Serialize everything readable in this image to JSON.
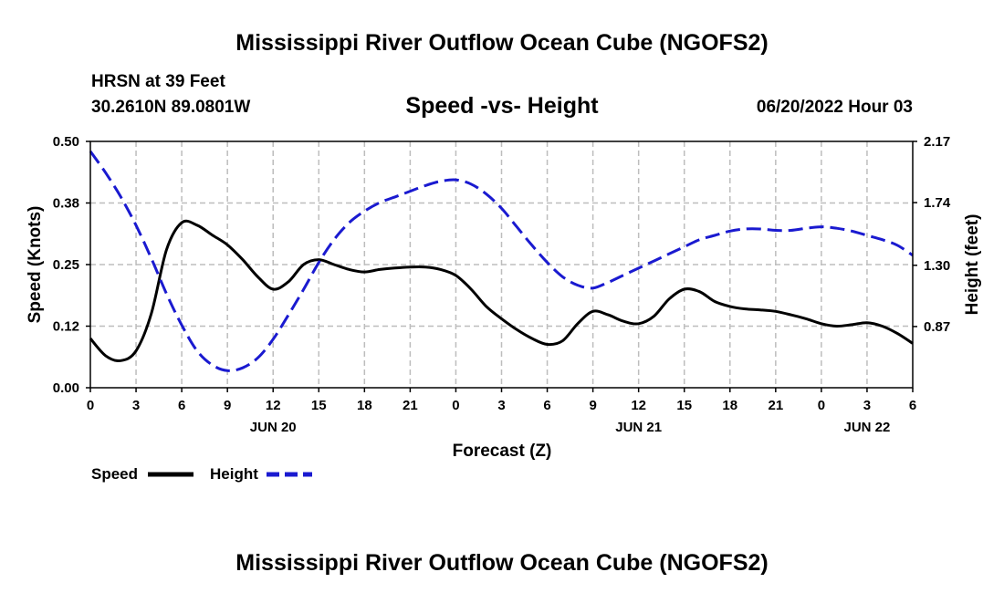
{
  "header": {
    "title": "Mississippi River Outflow Ocean Cube (NGOFS2)",
    "station": "HRSN at 39 Feet",
    "coords": "30.2610N  89.0801W",
    "date": "06/20/2022 Hour 03",
    "footer_title": "Mississippi River Outflow Ocean Cube (NGOFS2)"
  },
  "legend": {
    "speed_label": "Speed",
    "height_label": "Height"
  },
  "colors": {
    "speed": "#000000",
    "height": "#1a1ad0",
    "grid": "#bdbdbd"
  },
  "chart_data": {
    "type": "line",
    "title": "Speed -vs- Height",
    "xlabel": "Forecast (Z)",
    "ylabel": "Speed (Knots)",
    "y2label": "Height (feet)",
    "x_unit": "hours from 00Z Jun 20",
    "xlim": [
      0,
      54
    ],
    "ylim": [
      0,
      0.5
    ],
    "y2lim": [
      0.44,
      2.17
    ],
    "x_ticks": [
      0,
      3,
      6,
      9,
      12,
      15,
      18,
      21,
      24,
      27,
      30,
      33,
      36,
      39,
      42,
      45,
      48,
      51,
      54
    ],
    "x_tick_labels": [
      "0",
      "3",
      "6",
      "9",
      "12",
      "15",
      "18",
      "21",
      "0",
      "3",
      "6",
      "9",
      "12",
      "15",
      "18",
      "21",
      "0",
      "3",
      "6"
    ],
    "date_labels": [
      {
        "x": 12,
        "label": "JUN 20"
      },
      {
        "x": 36,
        "label": "JUN 21"
      },
      {
        "x": 51,
        "label": "JUN 22"
      }
    ],
    "y_ticks": [
      0.0,
      0.125,
      0.25,
      0.375,
      0.5
    ],
    "y_tick_labels": [
      "0.00",
      "0.12",
      "0.25",
      "0.38",
      "0.50"
    ],
    "y2_ticks": [
      0.87,
      1.3,
      1.74,
      2.17
    ],
    "y2_tick_labels": [
      "0.87",
      "1.30",
      "1.74",
      "2.17"
    ],
    "grid": true,
    "series": [
      {
        "name": "Speed",
        "axis": "left",
        "style": "solid",
        "x": [
          0,
          1,
          2,
          3,
          4,
          5,
          6,
          7,
          8,
          9,
          10,
          11,
          12,
          13,
          14,
          15,
          16,
          17,
          18,
          19,
          20,
          21,
          22,
          23,
          24,
          25,
          26,
          27,
          28,
          29,
          30,
          31,
          32,
          33,
          34,
          35,
          36,
          37,
          38,
          39,
          40,
          41,
          42,
          43,
          44,
          45,
          46,
          47,
          48,
          49,
          50,
          51,
          52,
          53,
          54
        ],
        "values": [
          0.1,
          0.065,
          0.055,
          0.075,
          0.15,
          0.28,
          0.335,
          0.33,
          0.31,
          0.29,
          0.26,
          0.225,
          0.2,
          0.215,
          0.25,
          0.26,
          0.25,
          0.24,
          0.235,
          0.24,
          0.243,
          0.245,
          0.245,
          0.24,
          0.228,
          0.2,
          0.165,
          0.14,
          0.118,
          0.1,
          0.088,
          0.095,
          0.13,
          0.155,
          0.148,
          0.135,
          0.13,
          0.145,
          0.18,
          0.2,
          0.195,
          0.175,
          0.165,
          0.16,
          0.158,
          0.155,
          0.148,
          0.14,
          0.13,
          0.125,
          0.128,
          0.132,
          0.125,
          0.11,
          0.09
        ]
      },
      {
        "name": "Height",
        "axis": "right",
        "style": "dashed",
        "x": [
          0,
          1,
          2,
          3,
          4,
          5,
          6,
          7,
          8,
          9,
          10,
          11,
          12,
          13,
          14,
          15,
          16,
          17,
          18,
          19,
          20,
          21,
          22,
          23,
          24,
          25,
          26,
          27,
          28,
          29,
          30,
          31,
          32,
          33,
          34,
          35,
          36,
          37,
          38,
          39,
          40,
          41,
          42,
          43,
          44,
          45,
          46,
          47,
          48,
          49,
          50,
          51,
          52,
          53,
          54
        ],
        "values": [
          2.1,
          1.95,
          1.78,
          1.58,
          1.35,
          1.1,
          0.88,
          0.7,
          0.6,
          0.56,
          0.58,
          0.65,
          0.78,
          0.95,
          1.13,
          1.32,
          1.48,
          1.6,
          1.68,
          1.74,
          1.78,
          1.82,
          1.86,
          1.89,
          1.9,
          1.87,
          1.8,
          1.7,
          1.57,
          1.44,
          1.32,
          1.22,
          1.16,
          1.14,
          1.18,
          1.23,
          1.28,
          1.33,
          1.38,
          1.43,
          1.48,
          1.51,
          1.54,
          1.555,
          1.555,
          1.545,
          1.545,
          1.56,
          1.57,
          1.56,
          1.54,
          1.51,
          1.48,
          1.44,
          1.37
        ]
      }
    ]
  }
}
